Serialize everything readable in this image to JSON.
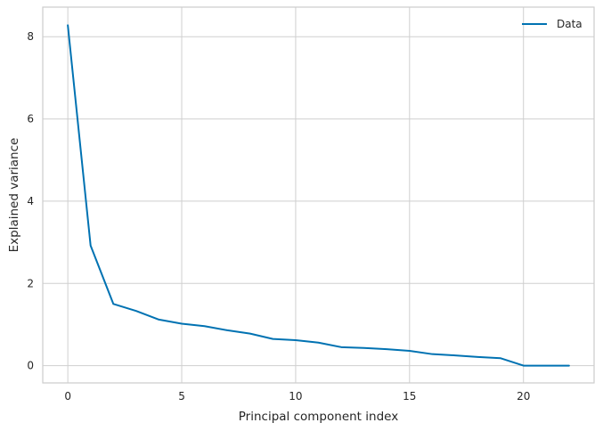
{
  "chart_data": {
    "type": "line",
    "title": "",
    "xlabel": "Principal component index",
    "ylabel": "Explained variance",
    "xlim": [
      -1.1,
      23.1
    ],
    "ylim": [
      -0.42,
      8.72
    ],
    "xticks": [
      0,
      5,
      10,
      15,
      20
    ],
    "yticks": [
      0,
      2,
      4,
      6,
      8
    ],
    "grid": true,
    "legend_position": "top-right",
    "series": [
      {
        "name": "Data",
        "color": "#0072b2",
        "x": [
          0,
          1,
          2,
          3,
          4,
          5,
          6,
          7,
          8,
          9,
          10,
          11,
          12,
          13,
          14,
          15,
          16,
          17,
          18,
          19,
          20,
          21,
          22
        ],
        "y": [
          8.28,
          2.92,
          1.5,
          1.33,
          1.12,
          1.02,
          0.96,
          0.86,
          0.78,
          0.65,
          0.62,
          0.56,
          0.45,
          0.43,
          0.4,
          0.36,
          0.28,
          0.25,
          0.21,
          0.18,
          0.0,
          0.0,
          0.0
        ]
      }
    ]
  }
}
